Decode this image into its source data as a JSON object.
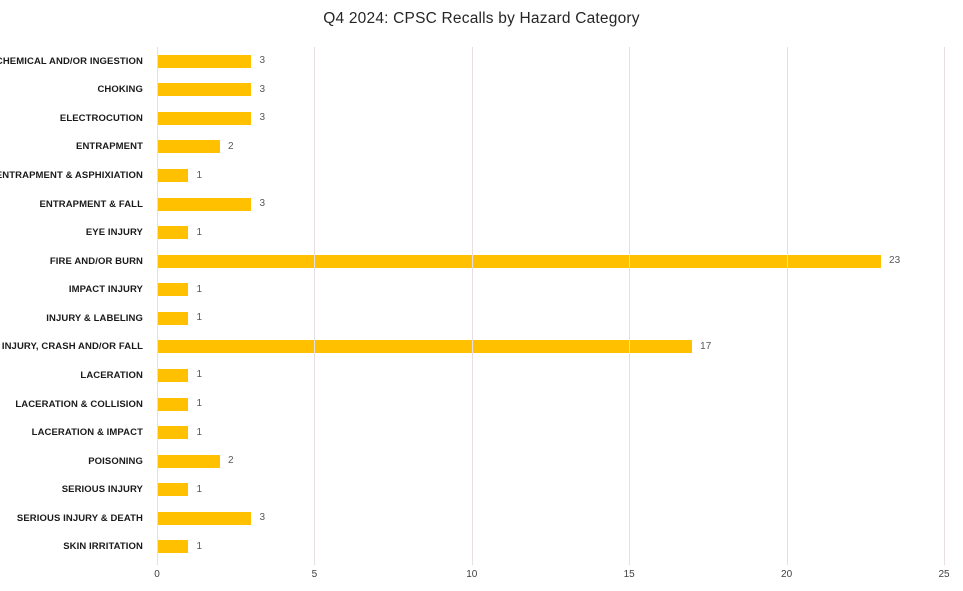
{
  "chart_data": {
    "type": "bar",
    "orientation": "horizontal",
    "title": "Q4 2024: CPSC Recalls by Hazard Category",
    "categories": [
      "CHEMICAL AND/OR INGESTION",
      "CHOKING",
      "ELECTROCUTION",
      "ENTRAPMENT",
      "ENTRAPMENT & ASPHIXIATION",
      "ENTRAPMENT & FALL",
      "EYE INJURY",
      "FIRE AND/OR BURN",
      "IMPACT INJURY",
      "INJURY & LABELING",
      "INJURY, CRASH AND/OR FALL",
      "LACERATION",
      "LACERATION & COLLISION",
      "LACERATION & IMPACT",
      "POISONING",
      "SERIOUS INJURY",
      "SERIOUS INJURY & DEATH",
      "SKIN IRRITATION"
    ],
    "values": [
      3,
      3,
      3,
      2,
      1,
      3,
      1,
      23,
      1,
      1,
      17,
      1,
      1,
      1,
      2,
      1,
      3,
      1
    ],
    "xlabel": "",
    "ylabel": "",
    "xlim": [
      0,
      25
    ],
    "x_ticks": [
      0,
      5,
      10,
      15,
      20,
      25
    ],
    "grid": "vertical-gridlines-on",
    "legend_position": "none",
    "data_labels": "shown-at-bar-end",
    "colors": {
      "bar": "#FFC000",
      "value_label": "#595959",
      "category_label": "#1a1a1a",
      "axis_tick_label": "#404040",
      "gridline": "#e7dee4",
      "background": "#ffffff"
    }
  }
}
